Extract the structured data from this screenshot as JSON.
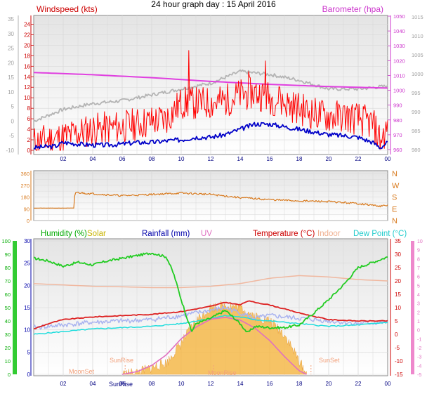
{
  "page_title": "24 hour graph day : 15 April 2016",
  "colors": {
    "wind_gust": "#ff0000",
    "wind_avg": "#0000c8",
    "barometer": "#e040e0",
    "grey_trace": "#b4b4b4",
    "direction": "#d87a1e",
    "humidity": "#22cc22",
    "solar": "#f5b94a",
    "rainfall": "#0000c8",
    "uv": "#e070c0",
    "temperature": "#dd2222",
    "indoor": "#f0b8a0",
    "dewpoint": "#22dddd",
    "app_temp": "#aab4f0"
  },
  "chart_data": [
    {
      "type": "line",
      "title": "",
      "x_ticks": [
        "02",
        "04",
        "06",
        "08",
        "10",
        "12",
        "14",
        "16",
        "18",
        "20",
        "22",
        "00"
      ],
      "left_axis": {
        "label": "Windspeed (kts)",
        "range": [
          0,
          25
        ],
        "ticks": [
          "0",
          "2",
          "4",
          "6",
          "8",
          "10",
          "12",
          "14",
          "16",
          "18",
          "20",
          "22",
          "24"
        ]
      },
      "outer_left_axis": {
        "range": [
          -10,
          35
        ],
        "ticks": [
          "-10",
          "-5",
          "0",
          "5",
          "10",
          "15",
          "20",
          "25",
          "30",
          "35"
        ]
      },
      "right_axis": {
        "label": "Barometer (hpa)",
        "range": [
          955,
          1051
        ],
        "ticks": [
          "960",
          "970",
          "980",
          "990",
          "1000",
          "1010",
          "1020",
          "1030",
          "1040",
          "1050"
        ]
      },
      "outer_right_axis": {
        "ticks": [
          "980",
          "985",
          "990",
          "995",
          "1000",
          "1005",
          "1010",
          "1015"
        ]
      },
      "series": [
        {
          "name": "Windspeed (kts)",
          "role": "gust",
          "noisy": true,
          "points": [
            [
              0,
              1.5
            ],
            [
              2,
              2.5
            ],
            [
              4,
              4
            ],
            [
              6,
              4.5
            ],
            [
              8,
              5.5
            ],
            [
              9,
              6
            ],
            [
              10,
              9
            ],
            [
              11,
              9
            ],
            [
              12,
              9
            ],
            [
              13,
              9.5
            ],
            [
              14,
              10.5
            ],
            [
              15,
              11
            ],
            [
              16,
              10
            ],
            [
              17,
              9
            ],
            [
              18,
              8
            ],
            [
              19,
              7
            ],
            [
              20,
              6.5
            ],
            [
              21,
              6.5
            ],
            [
              22,
              6
            ],
            [
              23,
              5
            ],
            [
              23.5,
              2
            ],
            [
              24,
              4
            ]
          ],
          "spikes": [
            [
              10.5,
              19
            ],
            [
              14.6,
              15
            ],
            [
              15.7,
              17
            ],
            [
              16.7,
              12
            ]
          ]
        },
        {
          "name": "Windspeed (kts)",
          "role": "average",
          "points": [
            [
              0,
              0.5
            ],
            [
              1.5,
              0.8
            ],
            [
              2,
              1.5
            ],
            [
              3,
              1.2
            ],
            [
              4,
              1
            ],
            [
              5,
              1
            ],
            [
              6,
              1.2
            ],
            [
              7,
              1.5
            ],
            [
              8,
              1.5
            ],
            [
              9,
              1.8
            ],
            [
              10,
              2
            ],
            [
              11,
              2.5
            ],
            [
              12,
              2.5
            ],
            [
              13,
              3
            ],
            [
              14,
              4
            ],
            [
              15,
              5
            ],
            [
              16,
              5
            ],
            [
              17,
              4.5
            ],
            [
              18,
              4
            ],
            [
              19,
              3.5
            ],
            [
              20,
              3
            ],
            [
              21,
              2.8
            ],
            [
              22,
              2.5
            ],
            [
              23,
              1.5
            ],
            [
              23.5,
              0.5
            ],
            [
              24,
              1.5
            ]
          ]
        },
        {
          "name": "Barometer (hpa)",
          "axis": "right",
          "points": [
            [
              0,
              1012
            ],
            [
              4,
              1010.5
            ],
            [
              8,
              1008.5
            ],
            [
              12,
              1006
            ],
            [
              16,
              1004
            ],
            [
              20,
              1002.5
            ],
            [
              24,
              1001.5
            ]
          ]
        },
        {
          "name": "",
          "axis": "outer_left",
          "role": "grey trace",
          "points": [
            [
              0,
              0
            ],
            [
              2,
              4
            ],
            [
              4,
              6
            ],
            [
              6,
              7
            ],
            [
              8,
              9
            ],
            [
              10,
              11
            ],
            [
              12,
              13
            ],
            [
              14,
              17
            ],
            [
              16,
              16
            ],
            [
              18,
              14
            ],
            [
              20,
              11
            ],
            [
              22,
              11
            ],
            [
              24,
              12
            ]
          ]
        }
      ]
    },
    {
      "type": "line",
      "title": "",
      "left_axis": {
        "range": [
          0,
          360
        ],
        "ticks": [
          "0",
          "90",
          "180",
          "270",
          "360"
        ]
      },
      "right_axis": {
        "labels": [
          "N",
          "W",
          "S",
          "E",
          "N"
        ]
      },
      "series": [
        {
          "name": "",
          "role": "wind direction",
          "noisy": true,
          "points": [
            [
              0,
              95
            ],
            [
              2.7,
              95
            ],
            [
              2.8,
              215
            ],
            [
              4,
              205
            ],
            [
              6,
              190
            ],
            [
              8,
              200
            ],
            [
              10,
              210
            ],
            [
              12,
              200
            ],
            [
              14,
              175
            ],
            [
              16,
              160
            ],
            [
              18,
              150
            ],
            [
              20,
              145
            ],
            [
              22,
              130
            ],
            [
              23.5,
              110
            ],
            [
              24,
              115
            ]
          ]
        }
      ]
    },
    {
      "type": "line",
      "title": "",
      "x_ticks": [
        "02",
        "04",
        "06",
        "08",
        "10",
        "12",
        "14",
        "16",
        "18",
        "20",
        "22",
        "00"
      ],
      "legend": [
        "Humidity (%)",
        "Solar",
        "Rainfall (mm)",
        "UV",
        "Temperature (°C)",
        "Indoor",
        "Dew Point (°C)"
      ],
      "humidity_axis": {
        "range": [
          0,
          100
        ],
        "ticks": [
          "0",
          "10",
          "20",
          "30",
          "40",
          "50",
          "60",
          "70",
          "80",
          "90",
          "100"
        ]
      },
      "solar_axis": {
        "range": [
          0,
          30
        ],
        "ticks": [
          "0",
          "5",
          "10",
          "15",
          "20",
          "25",
          "30"
        ]
      },
      "temperature_axis": {
        "range": [
          -15,
          35
        ],
        "ticks": [
          "-15",
          "-10",
          "-5",
          "0",
          "5",
          "10",
          "15",
          "20",
          "25",
          "30",
          "35"
        ]
      },
      "uv_axis": {
        "range": [
          -5,
          10
        ],
        "ticks": [
          "-5",
          "-4",
          "-3",
          "-2",
          "-1",
          "0",
          "1",
          "2",
          "3",
          "4",
          "5",
          "6",
          "7",
          "8",
          "9",
          "10"
        ]
      },
      "annotations": [
        "MoonSet",
        "SunRise",
        "SunRise",
        "SunSet",
        "MoonRise"
      ],
      "series": [
        {
          "name": "Humidity (%)",
          "axis": "humidity",
          "points": [
            [
              0,
              87
            ],
            [
              1,
              85
            ],
            [
              2,
              81
            ],
            [
              3,
              84
            ],
            [
              4,
              82
            ],
            [
              5,
              85
            ],
            [
              6,
              87
            ],
            [
              7,
              89
            ],
            [
              8,
              91
            ],
            [
              9,
              88
            ],
            [
              9.5,
              75
            ],
            [
              10,
              56
            ],
            [
              10.7,
              32
            ],
            [
              11,
              38
            ],
            [
              12,
              42
            ],
            [
              13,
              48
            ],
            [
              14,
              38
            ],
            [
              14.5,
              31
            ],
            [
              15,
              36
            ],
            [
              16,
              35
            ],
            [
              17,
              35
            ],
            [
              18,
              37
            ],
            [
              19,
              46
            ],
            [
              20,
              56
            ],
            [
              21,
              67
            ],
            [
              22,
              80
            ],
            [
              23,
              84
            ],
            [
              24,
              88
            ]
          ]
        },
        {
          "name": "Temperature (°C)",
          "axis": "temperature",
          "points": [
            [
              0,
              2
            ],
            [
              1,
              4
            ],
            [
              2,
              5.5
            ],
            [
              4,
              6.5
            ],
            [
              6,
              7
            ],
            [
              8,
              7.5
            ],
            [
              10,
              8.5
            ],
            [
              12,
              10.5
            ],
            [
              13,
              12
            ],
            [
              14,
              11
            ],
            [
              14.5,
              12.5
            ],
            [
              15,
              12
            ],
            [
              16,
              11
            ],
            [
              18,
              8
            ],
            [
              20,
              5.5
            ],
            [
              22,
              5
            ],
            [
              24,
              5
            ]
          ]
        },
        {
          "name": "Indoor",
          "axis": "temperature",
          "points": [
            [
              0,
              19
            ],
            [
              2,
              18.5
            ],
            [
              4,
              18
            ],
            [
              6,
              17.8
            ],
            [
              8,
              17.5
            ],
            [
              10,
              17.5
            ],
            [
              12,
              18
            ],
            [
              14,
              19
            ],
            [
              16,
              21
            ],
            [
              18,
              22
            ],
            [
              20,
              21.5
            ],
            [
              22,
              20.5
            ],
            [
              24,
              20
            ]
          ]
        },
        {
          "name": "Dew Point (°C)",
          "axis": "temperature",
          "points": [
            [
              0,
              0
            ],
            [
              2,
              1
            ],
            [
              4,
              2
            ],
            [
              6,
              2.5
            ],
            [
              8,
              3
            ],
            [
              10,
              4
            ],
            [
              12,
              6
            ],
            [
              13,
              7
            ],
            [
              14,
              6.5
            ],
            [
              15,
              5.5
            ],
            [
              16,
              5
            ],
            [
              18,
              4
            ],
            [
              20,
              3
            ],
            [
              22,
              3.5
            ],
            [
              24,
              4.5
            ]
          ]
        },
        {
          "name": "",
          "role": "light blue trace",
          "axis": "temperature",
          "noisy": true,
          "points": [
            [
              0,
              2.5
            ],
            [
              2,
              3.5
            ],
            [
              4,
              4.5
            ],
            [
              6,
              5
            ],
            [
              8,
              5.5
            ],
            [
              10,
              7
            ],
            [
              12,
              9
            ],
            [
              13,
              10
            ],
            [
              14,
              8
            ],
            [
              15,
              6
            ],
            [
              16,
              7
            ],
            [
              18,
              6
            ],
            [
              20,
              5
            ],
            [
              22,
              4
            ],
            [
              24,
              4.5
            ]
          ]
        },
        {
          "name": "Solar",
          "axis": "solar",
          "noisy": true,
          "points": [
            [
              6,
              0
            ],
            [
              7,
              0.4
            ],
            [
              8,
              1.5
            ],
            [
              9,
              2.5
            ],
            [
              10,
              7
            ],
            [
              11,
              12
            ],
            [
              12,
              15
            ],
            [
              13,
              15.5
            ],
            [
              14,
              15
            ],
            [
              15,
              13
            ],
            [
              16,
              12
            ],
            [
              17,
              9
            ],
            [
              18,
              3
            ],
            [
              18.5,
              0
            ]
          ]
        },
        {
          "name": "UV",
          "axis": "uv",
          "points": [
            [
              6,
              -5
            ],
            [
              7,
              -4.7
            ],
            [
              8,
              -4
            ],
            [
              9,
              -2.8
            ],
            [
              10,
              -1
            ],
            [
              11,
              0.3
            ],
            [
              12,
              1.2
            ],
            [
              13,
              1.4
            ],
            [
              14,
              1.1
            ],
            [
              15,
              0.2
            ],
            [
              16,
              -1.2
            ],
            [
              17,
              -3
            ],
            [
              18,
              -4.6
            ],
            [
              18.5,
              -5
            ]
          ]
        }
      ]
    }
  ]
}
